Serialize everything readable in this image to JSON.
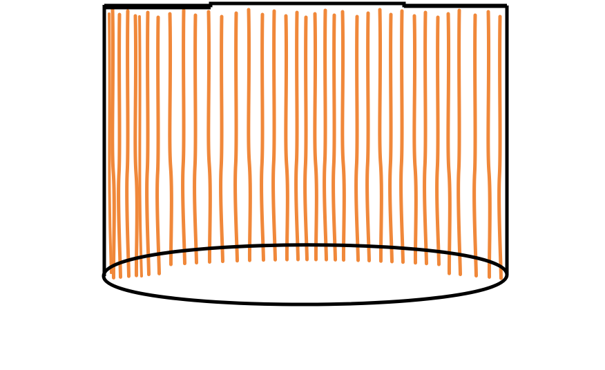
{
  "drawing": {
    "background_color": "#ffffff",
    "outline_color": "#000000",
    "stripe_color": "#f0883a",
    "shape": "cylinder",
    "stripe_count": 37
  }
}
